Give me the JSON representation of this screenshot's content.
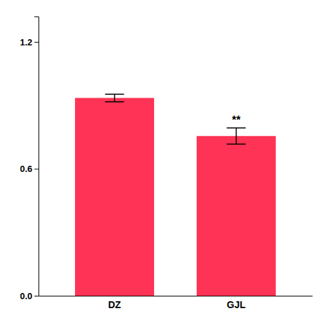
{
  "chart_data": {
    "type": "bar",
    "categories": [
      "DZ",
      "GJL"
    ],
    "values": [
      0.935,
      0.755
    ],
    "errors": [
      0.018,
      0.038
    ],
    "color": "#FF3355",
    "ylim": [
      0.0,
      1.32
    ],
    "yticks": [
      {
        "value": 0.0,
        "label": "0.0"
      },
      0.6,
      1.2
    ],
    "annotations": [
      {
        "text": "**",
        "category": "GJL"
      }
    ]
  }
}
